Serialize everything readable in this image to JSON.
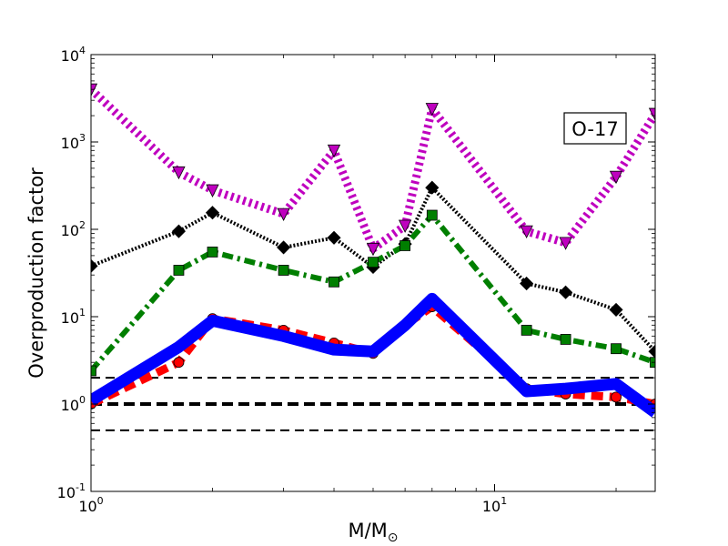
{
  "chart_data": {
    "type": "line",
    "title": "",
    "xlabel": "M/M",
    "xlabel_sub": "⊙",
    "ylabel": "Overproduction factor",
    "xscale": "log",
    "yscale": "log",
    "xlim": [
      1,
      25
    ],
    "ylim": [
      0.1,
      10000
    ],
    "grid": false,
    "legend": "none",
    "annotation": "O-17",
    "x_ticks": [
      {
        "base": "10",
        "exp": "0"
      },
      {
        "base": "10",
        "exp": "1"
      }
    ],
    "y_ticks": [
      {
        "base": "10",
        "exp": "-1"
      },
      {
        "base": "10",
        "exp": "0"
      },
      {
        "base": "10",
        "exp": "1"
      },
      {
        "base": "10",
        "exp": "2"
      },
      {
        "base": "10",
        "exp": "3"
      },
      {
        "base": "10",
        "exp": "4"
      }
    ],
    "reference_lines": [
      {
        "y": 0.5,
        "style": "dashed-thin",
        "color": "#000000"
      },
      {
        "y": 1.0,
        "style": "dashed-thick",
        "color": "#000000"
      },
      {
        "y": 2.0,
        "style": "dashed-thin",
        "color": "#000000"
      }
    ],
    "series": [
      {
        "style": "dotted",
        "color": "#bf00bf",
        "marker": "triangle-down",
        "x": [
          1,
          1.65,
          2,
          3,
          4,
          5,
          6,
          7,
          12,
          15,
          20,
          25
        ],
        "y": [
          4000,
          450,
          280,
          150,
          800,
          60,
          110,
          2400,
          95,
          70,
          400,
          2100
        ]
      },
      {
        "style": "dotted",
        "color": "#000000",
        "marker": "diamond",
        "x": [
          1,
          1.65,
          2,
          3,
          4,
          5,
          6,
          7,
          12,
          15,
          20,
          25
        ],
        "y": [
          38,
          95,
          155,
          62,
          80,
          37,
          68,
          300,
          24,
          19,
          12,
          4
        ]
      },
      {
        "style": "dashdot",
        "color": "#007f00",
        "marker": "square",
        "x": [
          1,
          1.65,
          2,
          3,
          4,
          5,
          6,
          7,
          12,
          15,
          20,
          25
        ],
        "y": [
          2.4,
          34,
          55,
          34,
          25,
          42,
          65,
          145,
          7,
          5.5,
          4.3,
          3
        ]
      },
      {
        "style": "dashed",
        "color": "#ff0000",
        "marker": "circle",
        "x": [
          1,
          1.65,
          2,
          3,
          4,
          5,
          6,
          7,
          12,
          15,
          20,
          25
        ],
        "y": [
          1.0,
          3.0,
          9.5,
          7,
          5,
          3.8,
          8,
          13,
          1.5,
          1.3,
          1.2,
          1.0
        ]
      },
      {
        "style": "solid",
        "color": "#0000ff",
        "marker": "none",
        "x": [
          1,
          1.65,
          2,
          3,
          4,
          5,
          6,
          7,
          12,
          15,
          20,
          25
        ],
        "y": [
          1.1,
          4.5,
          9,
          6,
          4.2,
          4,
          8,
          16,
          1.4,
          1.5,
          1.7,
          0.8
        ]
      }
    ]
  }
}
